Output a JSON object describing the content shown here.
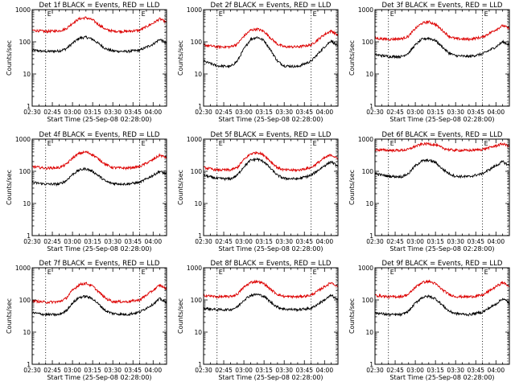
{
  "figure": {
    "xlabel": "Start Time (25-Sep-08 02:28:00)",
    "ylabel": "Counts/sec",
    "xtick_labels": [
      "02:30",
      "02:45",
      "03:00",
      "03:15",
      "03:30",
      "03:45",
      "04:00"
    ],
    "ytick_labels": [
      "1",
      "10",
      "100",
      "1000"
    ],
    "marker_label": "E",
    "colors": {
      "events": "#000000",
      "lld": "#dd0000",
      "axes": "#000000",
      "background": "#ffffff"
    }
  },
  "chart_data": [
    {
      "type": "line",
      "title": "Det 1f BLACK = Events, RED = LLD",
      "xlabel": "Start Time (25-Sep-08 02:28:00)",
      "ylabel": "Counts/sec",
      "x_unit": "minutes after 02:30",
      "xlim": [
        0,
        100
      ],
      "ylim": [
        1,
        1000
      ],
      "yscale": "log",
      "x": [
        0,
        10,
        20,
        25,
        30,
        35,
        40,
        45,
        50,
        55,
        60,
        70,
        80,
        90,
        95,
        100
      ],
      "series": [
        {
          "name": "Events",
          "values": [
            55,
            50,
            52,
            60,
            90,
            130,
            140,
            120,
            85,
            60,
            52,
            50,
            55,
            85,
            120,
            90
          ]
        },
        {
          "name": "LLD",
          "values": [
            230,
            210,
            220,
            250,
            380,
            520,
            560,
            480,
            330,
            240,
            215,
            210,
            230,
            380,
            520,
            400
          ]
        }
      ],
      "markers": [
        10,
        80
      ]
    },
    {
      "type": "line",
      "title": "Det 2f BLACK = Events, RED = LLD",
      "xlabel": "Start Time (25-Sep-08 02:28:00)",
      "ylabel": "Counts/sec",
      "x_unit": "minutes after 02:30",
      "xlim": [
        0,
        100
      ],
      "ylim": [
        1,
        1000
      ],
      "yscale": "log",
      "x": [
        0,
        10,
        20,
        25,
        30,
        35,
        40,
        45,
        50,
        55,
        60,
        70,
        80,
        90,
        95,
        100
      ],
      "series": [
        {
          "name": "Events",
          "values": [
            25,
            18,
            17,
            25,
            60,
            120,
            140,
            110,
            55,
            25,
            18,
            17,
            25,
            70,
            110,
            70
          ]
        },
        {
          "name": "LLD",
          "values": [
            80,
            70,
            70,
            85,
            150,
            230,
            250,
            210,
            130,
            85,
            70,
            70,
            80,
            170,
            220,
            160
          ]
        }
      ],
      "markers": [
        10,
        80
      ]
    },
    {
      "type": "line",
      "title": "Det 3f BLACK = Events, RED = LLD",
      "xlabel": "Start Time (25-Sep-08 02:28:00)",
      "ylabel": "Counts/sec",
      "x_unit": "minutes after 02:30",
      "xlim": [
        0,
        100
      ],
      "ylim": [
        1,
        1000
      ],
      "yscale": "log",
      "x": [
        0,
        10,
        20,
        25,
        30,
        35,
        40,
        45,
        50,
        55,
        60,
        70,
        80,
        90,
        95,
        100
      ],
      "series": [
        {
          "name": "Events",
          "values": [
            40,
            35,
            35,
            45,
            80,
            120,
            130,
            110,
            70,
            45,
            37,
            35,
            42,
            70,
            100,
            80
          ]
        },
        {
          "name": "LLD",
          "values": [
            130,
            120,
            125,
            150,
            260,
            380,
            420,
            350,
            230,
            150,
            125,
            120,
            140,
            240,
            320,
            260
          ]
        }
      ],
      "markers": [
        10,
        80
      ]
    },
    {
      "type": "line",
      "title": "Det 4f BLACK = Events, RED = LLD",
      "xlabel": "Start Time (25-Sep-08 02:28:00)",
      "ylabel": "Counts/sec",
      "x_unit": "minutes after 02:30",
      "xlim": [
        0,
        100
      ],
      "ylim": [
        1,
        1000
      ],
      "yscale": "log",
      "x": [
        0,
        10,
        20,
        25,
        30,
        35,
        40,
        45,
        50,
        55,
        60,
        70,
        80,
        90,
        95,
        100
      ],
      "series": [
        {
          "name": "Events",
          "values": [
            45,
            40,
            40,
            50,
            80,
            110,
            120,
            100,
            70,
            48,
            42,
            40,
            45,
            75,
            100,
            80
          ]
        },
        {
          "name": "LLD",
          "values": [
            140,
            125,
            130,
            160,
            260,
            360,
            400,
            330,
            230,
            160,
            130,
            125,
            140,
            230,
            320,
            260
          ]
        }
      ],
      "markers": [
        10,
        80
      ]
    },
    {
      "type": "line",
      "title": "Det 5f BLACK = Events, RED = LLD",
      "xlabel": "Start Time (25-Sep-08 02:28:00)",
      "ylabel": "Counts/sec",
      "x_unit": "minutes after 02:30",
      "xlim": [
        0,
        100
      ],
      "ylim": [
        1,
        1000
      ],
      "yscale": "log",
      "x": [
        0,
        10,
        20,
        25,
        30,
        35,
        40,
        45,
        50,
        55,
        60,
        70,
        80,
        90,
        95,
        100
      ],
      "series": [
        {
          "name": "Events",
          "values": [
            75,
            60,
            58,
            75,
            140,
            220,
            240,
            200,
            120,
            75,
            60,
            58,
            75,
            150,
            200,
            140
          ]
        },
        {
          "name": "LLD",
          "values": [
            130,
            110,
            110,
            130,
            230,
            350,
            390,
            320,
            200,
            130,
            110,
            108,
            130,
            260,
            330,
            240
          ]
        }
      ],
      "markers": [
        10,
        80
      ]
    },
    {
      "type": "line",
      "title": "Det 6f BLACK = Events, RED = LLD",
      "xlabel": "Start Time (25-Sep-08 02:28:00)",
      "ylabel": "Counts/sec",
      "x_unit": "minutes after 02:30",
      "xlim": [
        0,
        100
      ],
      "ylim": [
        1,
        1000
      ],
      "yscale": "log",
      "x": [
        0,
        10,
        20,
        25,
        30,
        35,
        40,
        45,
        50,
        55,
        60,
        70,
        80,
        90,
        95,
        100
      ],
      "series": [
        {
          "name": "Events",
          "values": [
            85,
            70,
            68,
            85,
            150,
            210,
            220,
            190,
            120,
            85,
            70,
            68,
            85,
            150,
            200,
            150
          ]
        },
        {
          "name": "LLD",
          "values": [
            470,
            450,
            450,
            480,
            600,
            700,
            720,
            660,
            540,
            470,
            450,
            445,
            480,
            620,
            720,
            600
          ]
        }
      ],
      "markers": [
        10,
        80
      ]
    },
    {
      "type": "line",
      "title": "Det 7f BLACK = Events, RED = LLD",
      "xlabel": "Start Time (25-Sep-08 02:28:00)",
      "ylabel": "Counts/sec",
      "x_unit": "minutes after 02:30",
      "xlim": [
        0,
        100
      ],
      "ylim": [
        1,
        1000
      ],
      "yscale": "log",
      "x": [
        0,
        10,
        20,
        25,
        30,
        35,
        40,
        45,
        50,
        55,
        60,
        70,
        80,
        90,
        95,
        100
      ],
      "series": [
        {
          "name": "Events",
          "values": [
            40,
            35,
            35,
            45,
            80,
            120,
            130,
            110,
            70,
            45,
            38,
            35,
            42,
            75,
            110,
            80
          ]
        },
        {
          "name": "LLD",
          "values": [
            95,
            85,
            88,
            110,
            200,
            300,
            330,
            270,
            170,
            110,
            90,
            88,
            100,
            200,
            290,
            220
          ]
        }
      ],
      "markers": [
        10,
        80
      ]
    },
    {
      "type": "line",
      "title": "Det 8f BLACK = Events, RED = LLD",
      "xlabel": "Start Time (25-Sep-08 02:28:00)",
      "ylabel": "Counts/sec",
      "x_unit": "minutes after 02:30",
      "xlim": [
        0,
        100
      ],
      "ylim": [
        1,
        1000
      ],
      "yscale": "log",
      "x": [
        0,
        10,
        20,
        25,
        30,
        35,
        40,
        45,
        50,
        55,
        60,
        70,
        80,
        90,
        95,
        100
      ],
      "series": [
        {
          "name": "Events",
          "values": [
            55,
            50,
            50,
            60,
            100,
            140,
            150,
            130,
            85,
            60,
            52,
            50,
            55,
            100,
            140,
            100
          ]
        },
        {
          "name": "LLD",
          "values": [
            140,
            125,
            128,
            150,
            250,
            350,
            380,
            320,
            210,
            150,
            128,
            125,
            140,
            260,
            350,
            260
          ]
        }
      ],
      "markers": [
        10,
        80
      ]
    },
    {
      "type": "line",
      "title": "Det 9f BLACK = Events, RED = LLD",
      "xlabel": "Start Time (25-Sep-08 02:28:00)",
      "ylabel": "Counts/sec",
      "x_unit": "minutes after 02:30",
      "xlim": [
        0,
        100
      ],
      "ylim": [
        1,
        1000
      ],
      "yscale": "log",
      "x": [
        0,
        10,
        20,
        25,
        30,
        35,
        40,
        45,
        50,
        55,
        60,
        70,
        80,
        90,
        95,
        100
      ],
      "series": [
        {
          "name": "Events",
          "values": [
            40,
            35,
            35,
            45,
            80,
            120,
            130,
            110,
            70,
            45,
            38,
            35,
            42,
            75,
            110,
            80
          ]
        },
        {
          "name": "LLD",
          "values": [
            140,
            125,
            128,
            150,
            250,
            350,
            380,
            320,
            210,
            150,
            128,
            125,
            140,
            260,
            350,
            270
          ]
        }
      ],
      "markers": [
        10,
        80
      ]
    }
  ]
}
